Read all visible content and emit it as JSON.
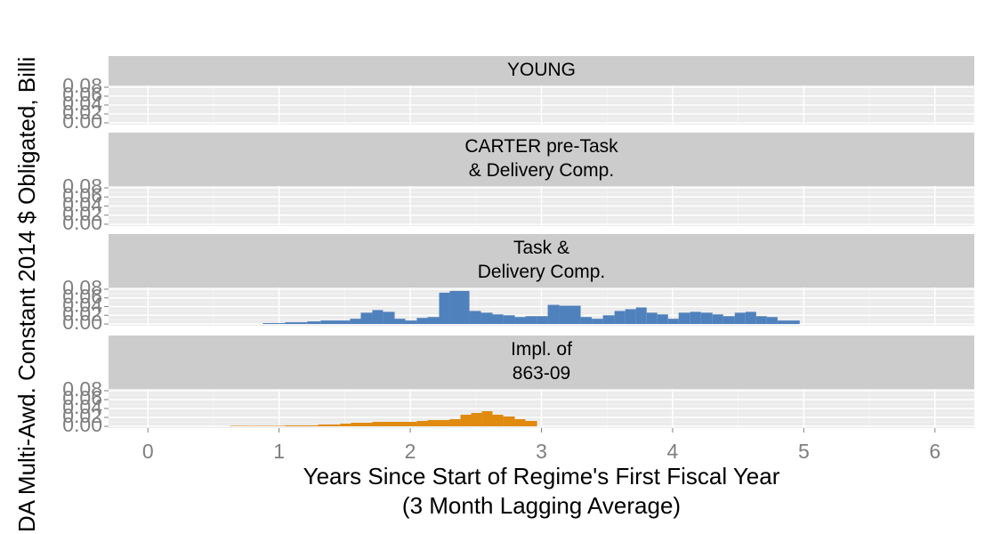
{
  "chart_data": {
    "type": "histogram",
    "y_label": "DA Multi-Awd. Constant 2014 $ Obligated, Billi",
    "x_label": [
      "Years Since Start of Regime's First Fiscal Year",
      "(3 Month Lagging Average)"
    ],
    "xlim": [
      -0.3,
      6.3
    ],
    "xticks": [
      0,
      1,
      2,
      3,
      4,
      5,
      6
    ],
    "ylim": [
      -0.004,
      0.084
    ],
    "yticks": [
      {
        "value": 0,
        "label": "0.00"
      },
      {
        "value": 0.02,
        "label": "0.02"
      },
      {
        "value": 0.04,
        "label": "0.04"
      },
      {
        "value": 0.06,
        "label": "0.06"
      },
      {
        "value": 0.08,
        "label": "0.08"
      }
    ],
    "grid": true,
    "facets": [
      {
        "label": [
          "YOUNG"
        ]
      },
      {
        "label": [
          "CARTER pre-Task",
          "& Delivery Comp."
        ]
      },
      {
        "label": [
          "Task &",
          "Delivery Comp."
        ],
        "color": "#4f81bd",
        "bins": [
          0.876,
          1.045,
          1.215,
          1.317,
          1.541,
          1.623,
          1.711,
          1.792,
          1.881,
          1.962,
          2.05,
          2.132,
          2.22,
          2.301,
          2.451,
          2.539,
          2.627,
          2.709,
          2.797,
          2.878,
          2.967,
          3.048,
          3.136,
          3.299,
          3.384,
          3.469,
          3.557,
          3.639,
          3.72,
          3.802,
          3.883,
          3.965,
          4.046,
          4.134,
          4.216,
          4.304,
          4.386,
          4.474,
          4.555,
          4.637,
          4.718,
          4.8,
          4.969
        ],
        "values": [
          0.002,
          0.004,
          0.006,
          0.008,
          0.012,
          0.026,
          0.032,
          0.028,
          0.012,
          0.008,
          0.014,
          0.016,
          0.072,
          0.076,
          0.03,
          0.026,
          0.022,
          0.02,
          0.016,
          0.018,
          0.018,
          0.044,
          0.042,
          0.016,
          0.012,
          0.02,
          0.03,
          0.034,
          0.038,
          0.026,
          0.022,
          0.012,
          0.026,
          0.028,
          0.026,
          0.022,
          0.018,
          0.026,
          0.028,
          0.018,
          0.016,
          0.008
        ]
      },
      {
        "label": [
          "Impl. of",
          "863-09"
        ],
        "color": "#e08a0e",
        "bins": [
          0.625,
          0.788,
          1.045,
          1.297,
          1.466,
          1.548,
          1.711,
          1.799,
          2.05,
          2.132,
          2.301,
          2.383,
          2.464,
          2.546,
          2.627,
          2.709,
          2.797,
          2.878,
          2.967
        ],
        "values": [
          0.001,
          0.001,
          0.002,
          0.004,
          0.006,
          0.008,
          0.01,
          0.01,
          0.012,
          0.014,
          0.016,
          0.026,
          0.03,
          0.034,
          0.026,
          0.022,
          0.016,
          0.012
        ]
      }
    ]
  }
}
